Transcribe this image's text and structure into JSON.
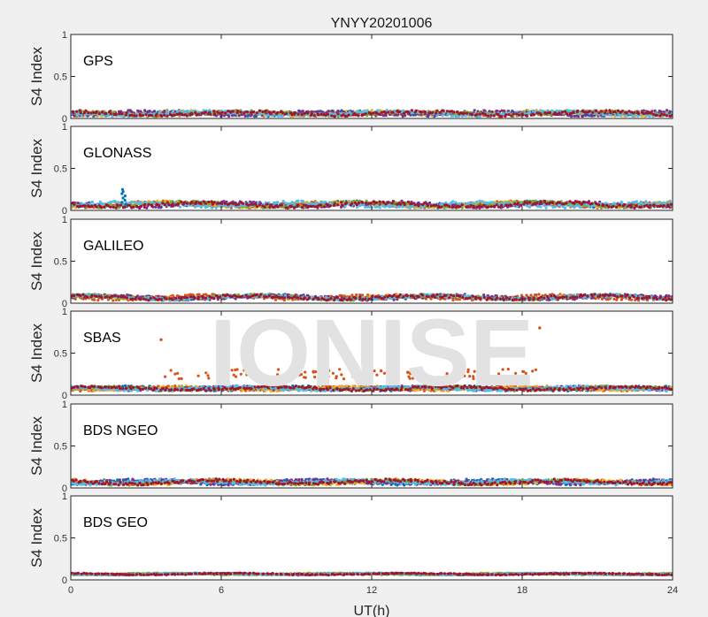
{
  "chart_data": {
    "type": "scatter",
    "title": "YNYY20201006",
    "xlabel": "UT(h)",
    "ylabel": "S4 Index",
    "xlim": [
      0,
      24
    ],
    "ylim": [
      0,
      1
    ],
    "x_ticks": [
      "0",
      "6",
      "12",
      "18",
      "24"
    ],
    "y_ticks": [
      "0",
      "0.5",
      "1"
    ],
    "watermark": "IONISE",
    "grid": false,
    "series_colors": [
      "#0072bd",
      "#d95319",
      "#edb120",
      "#7e2f8e",
      "#77ac30",
      "#4dbeee",
      "#a2142f"
    ],
    "panels": [
      {
        "label": "GPS",
        "baseline": 0.06,
        "spread": 0.035
      },
      {
        "label": "GLONASS",
        "baseline": 0.07,
        "spread": 0.04,
        "spikes": [
          {
            "x": 2.1,
            "y": 0.25
          }
        ]
      },
      {
        "label": "GALILEO",
        "baseline": 0.07,
        "spread": 0.035
      },
      {
        "label": "SBAS",
        "baseline": 0.08,
        "spread": 0.03,
        "highlight_bg": "#ffffff",
        "outliers": [
          {
            "x": 3.6,
            "y": 0.66
          },
          {
            "x": 18.7,
            "y": 0.8
          }
        ],
        "band": {
          "x_start": 3.6,
          "x_end": 18.6,
          "y": 0.25,
          "color": "#d95319"
        }
      },
      {
        "label": "BDS NGEO",
        "baseline": 0.07,
        "spread": 0.035
      },
      {
        "label": "BDS GEO",
        "baseline": 0.07,
        "spread": 0.012
      }
    ]
  }
}
